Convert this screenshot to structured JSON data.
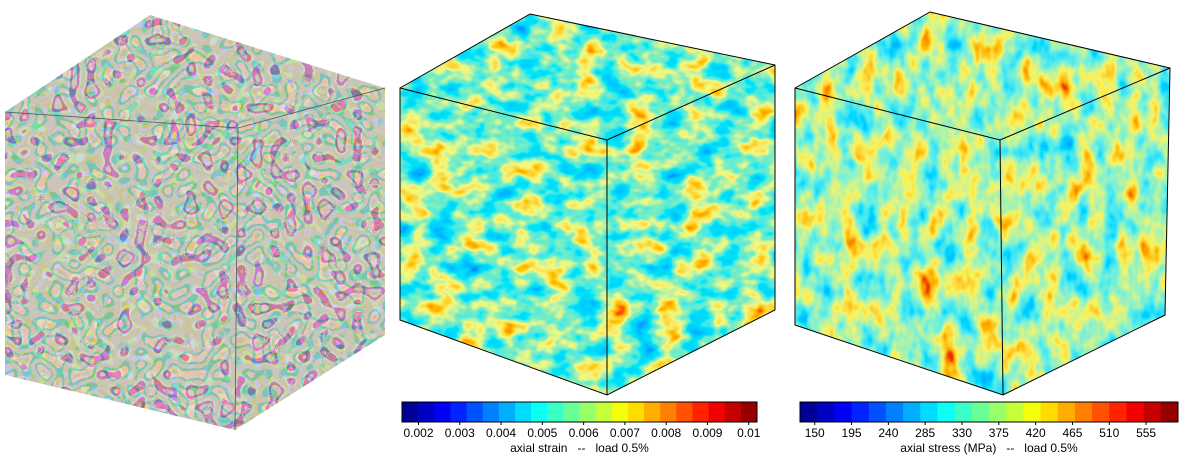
{
  "figure": {
    "colorbars": [
      {
        "label": "axial strain   --   load 0.5%",
        "range": [
          0.0016,
          0.0102
        ],
        "ticks": [
          0.002,
          0.003,
          0.004,
          0.005,
          0.006,
          0.007,
          0.008,
          0.009,
          0.01
        ]
      },
      {
        "label": "axial stress (MPa)   --   load 0.5%",
        "range": [
          132,
          594
        ],
        "ticks": [
          150,
          195,
          240,
          285,
          330,
          375,
          420,
          465,
          510,
          555
        ]
      }
    ]
  }
}
